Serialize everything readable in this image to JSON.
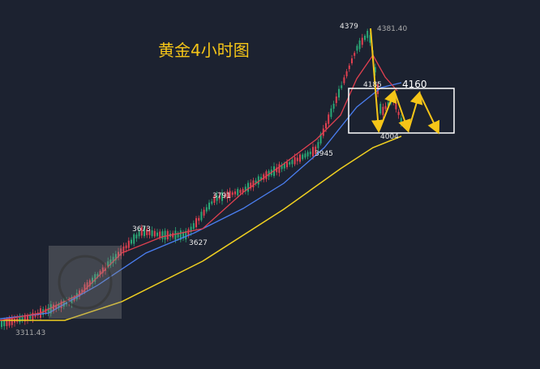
{
  "title": "黄金4小时图",
  "price_labels": [
    "4379",
    "4381.40",
    "4185",
    "4160",
    "4004",
    "3945",
    "3791",
    "3673",
    "3627",
    "3311.43"
  ]
}
